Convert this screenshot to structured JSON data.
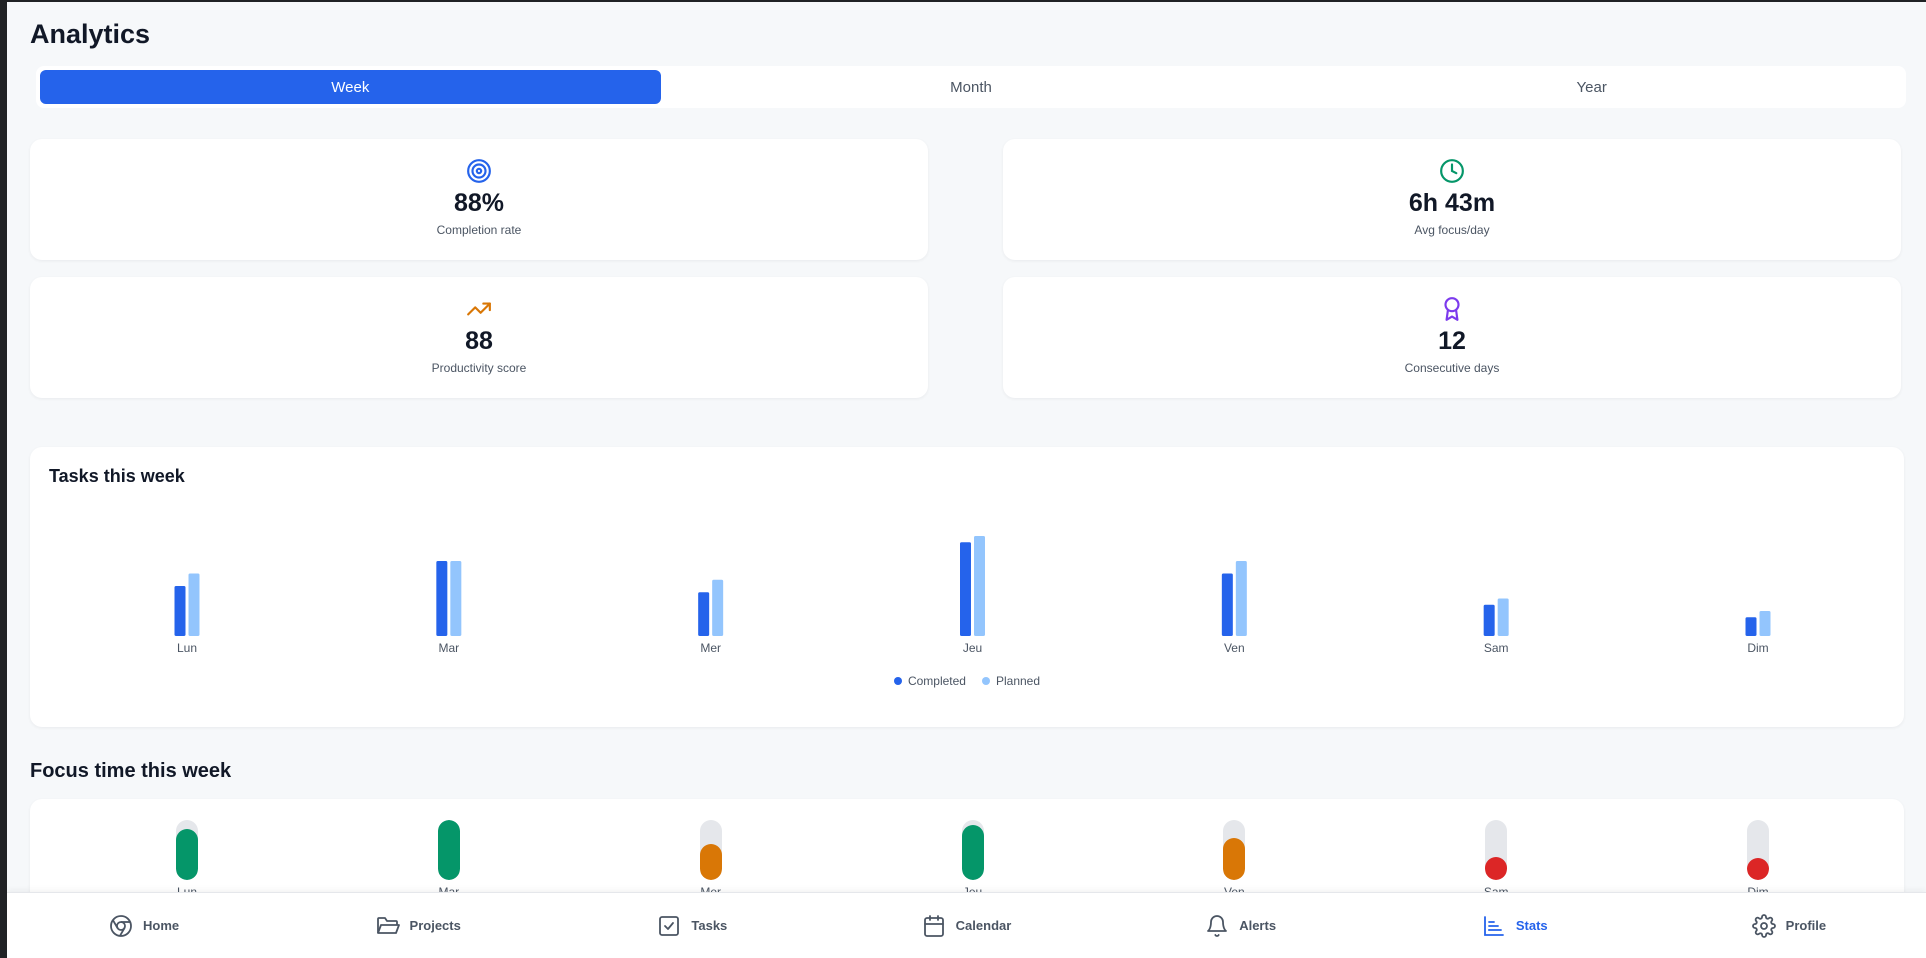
{
  "page": {
    "title": "Analytics"
  },
  "period_tabs": [
    {
      "label": "Week",
      "active": true
    },
    {
      "label": "Month",
      "active": false
    },
    {
      "label": "Year",
      "active": false
    }
  ],
  "stats": [
    {
      "icon": "target-icon",
      "value": "88%",
      "label": "Completion rate",
      "color": "#2563eb"
    },
    {
      "icon": "clock-icon",
      "value": "6h 43m",
      "label": "Avg focus/day",
      "color": "#059669"
    },
    {
      "icon": "trending-up-icon",
      "value": "88",
      "label": "Productivity score",
      "color": "#d97706"
    },
    {
      "icon": "award-icon",
      "value": "12",
      "label": "Consecutive days",
      "color": "#7c3aed"
    }
  ],
  "chart_data": {
    "type": "bar",
    "title": "Tasks this week",
    "categories": [
      "Lun",
      "Mar",
      "Mer",
      "Jeu",
      "Ven",
      "Sam",
      "Dim"
    ],
    "series": [
      {
        "name": "Completed",
        "color": "#2563eb",
        "values": [
          8,
          12,
          7,
          15,
          10,
          5,
          3
        ]
      },
      {
        "name": "Planned",
        "color": "#93c5fd",
        "values": [
          10,
          12,
          9,
          16,
          12,
          6,
          4
        ]
      }
    ],
    "xlabel": "",
    "ylabel": "",
    "legend": "bottom-center"
  },
  "focus": {
    "title": "Focus time this week",
    "days": [
      {
        "label": "Lun",
        "fraction": 0.85,
        "color": "#059669"
      },
      {
        "label": "Mar",
        "fraction": 1.0,
        "color": "#059669"
      },
      {
        "label": "Mer",
        "fraction": 0.6,
        "color": "#d97706"
      },
      {
        "label": "Jeu",
        "fraction": 0.92,
        "color": "#059669"
      },
      {
        "label": "Ven",
        "fraction": 0.7,
        "color": "#d97706"
      },
      {
        "label": "Sam",
        "fraction": 0.38,
        "color": "#dc2626"
      },
      {
        "label": "Dim",
        "fraction": 0.28,
        "color": "#dc2626"
      }
    ]
  },
  "nav": [
    {
      "label": "Home",
      "icon": "home-icon",
      "active": false
    },
    {
      "label": "Projects",
      "icon": "folder-icon",
      "active": false
    },
    {
      "label": "Tasks",
      "icon": "task-check-icon",
      "active": false
    },
    {
      "label": "Calendar",
      "icon": "calendar-icon",
      "active": false
    },
    {
      "label": "Alerts",
      "icon": "bell-icon",
      "active": false
    },
    {
      "label": "Stats",
      "icon": "bar-chart-icon",
      "active": true
    },
    {
      "label": "Profile",
      "icon": "gear-icon",
      "active": false
    }
  ]
}
